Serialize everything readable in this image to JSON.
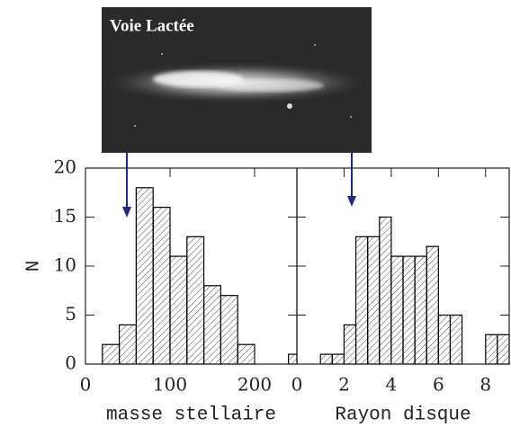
{
  "image": {
    "title": "Voie Lactée"
  },
  "chart_data": [
    {
      "type": "histogram",
      "xlabel": "masse stellaire",
      "ylabel": "N",
      "bins": [
        0,
        20,
        40,
        60,
        80,
        100,
        120,
        140,
        160,
        180,
        200,
        220,
        240,
        260
      ],
      "values": [
        0,
        2,
        4,
        18,
        16,
        11,
        13,
        8,
        7,
        2,
        0,
        0,
        1
      ],
      "xlim": [
        0,
        250
      ],
      "xticks": [
        0,
        100,
        200
      ],
      "ylim": [
        0,
        20
      ],
      "yticks": [
        0,
        5,
        10,
        15,
        20
      ],
      "color": "#000000"
    },
    {
      "type": "histogram",
      "xlabel": "Rayon disque",
      "bins": [
        1,
        1.5,
        2,
        2.5,
        3,
        3.5,
        4,
        4.5,
        5,
        5.5,
        6,
        6.5,
        7,
        7.5,
        8,
        8.5,
        9
      ],
      "values": [
        1,
        1,
        4,
        13,
        13,
        15,
        11,
        11,
        11,
        12,
        5,
        5,
        0,
        0,
        3,
        3
      ],
      "xlim": [
        0,
        9
      ],
      "xticks": [
        0,
        2,
        4,
        6,
        8
      ],
      "ylim": [
        0,
        20
      ],
      "color": "#000000"
    }
  ]
}
